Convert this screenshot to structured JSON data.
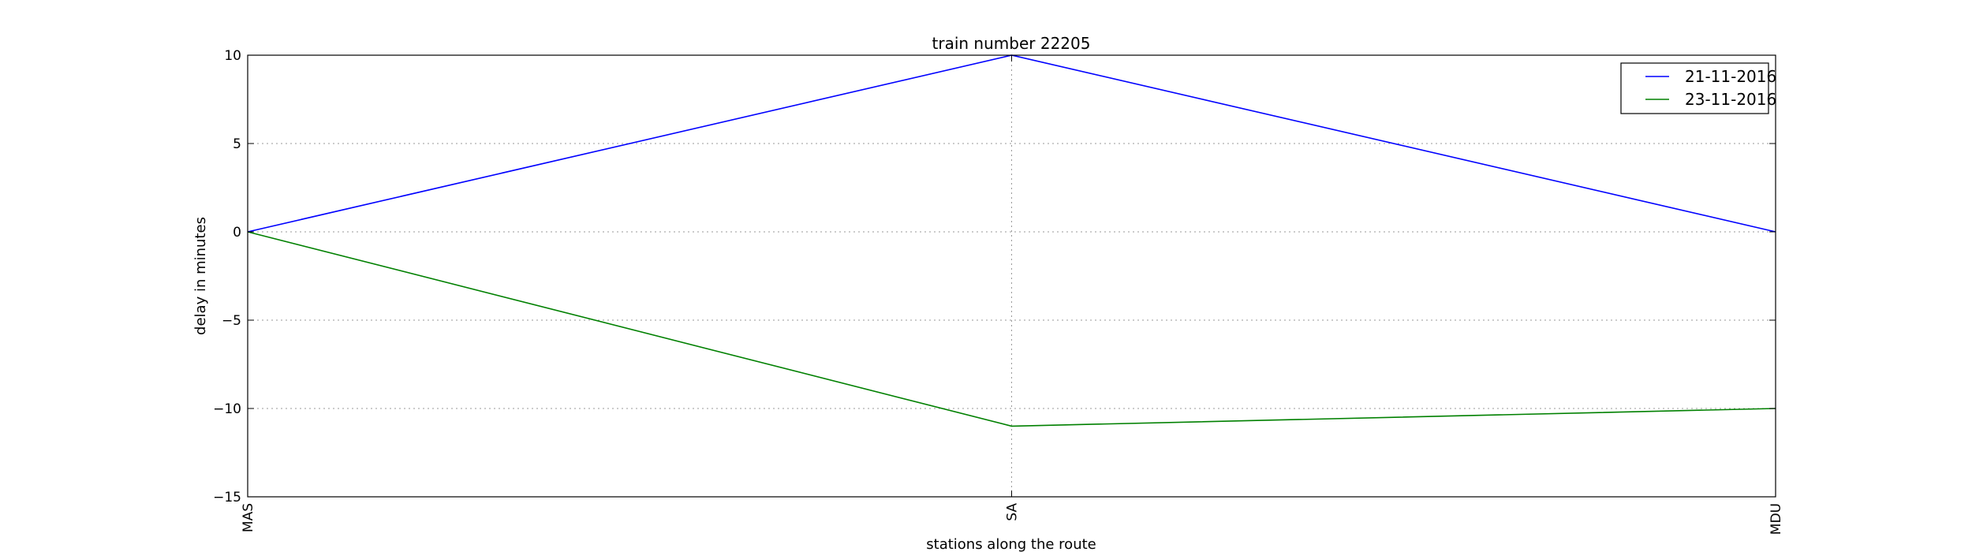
{
  "chart_data": {
    "type": "line",
    "title": "train number 22205",
    "xlabel": "stations along the route",
    "ylabel": "delay in minutes",
    "categories": [
      "MAS",
      "SA",
      "MDU"
    ],
    "ylim": [
      -15,
      10
    ],
    "yticks": [
      -15,
      -10,
      -5,
      0,
      5,
      10
    ],
    "ytick_labels": [
      "−15",
      "−10",
      "−5",
      "0",
      "5",
      "10"
    ],
    "grid": true,
    "legend_position": "top-right",
    "series": [
      {
        "name": "21-11-2016",
        "color": "#0000ff",
        "values": [
          0,
          10,
          0
        ]
      },
      {
        "name": "23-11-2016",
        "color": "#008000",
        "values": [
          0,
          -11,
          -10
        ]
      }
    ]
  }
}
